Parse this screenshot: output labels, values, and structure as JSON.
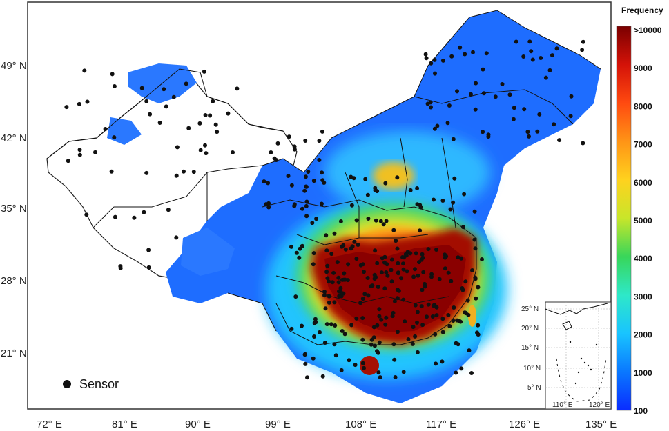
{
  "map": {
    "colorbar": {
      "title": "Frequency",
      "ticks": [
        ">10000",
        "9000",
        "8000",
        "7000",
        "6000",
        "5000",
        "4000",
        "3000",
        "2000",
        "1000",
        "100"
      ],
      "colors": [
        "#0a2cff",
        "#0a78ff",
        "#19c4ff",
        "#2ee8c8",
        "#38d65a",
        "#c8e62a",
        "#ffd21e",
        "#ff9416",
        "#ff4a10",
        "#d41208",
        "#7a0000"
      ]
    },
    "lon_labels": [
      "72° E",
      "81° E",
      "90° E",
      "99° E",
      "108° E",
      "117° E",
      "126° E",
      "135° E"
    ],
    "lat_labels": [
      "49° N",
      "42° N",
      "35° N",
      "28° N",
      "21° N"
    ],
    "legend": {
      "label": "Sensor"
    },
    "inset": {
      "lat_labels": [
        "25° N",
        "20° N",
        "15° N",
        "10° N",
        "5° N"
      ],
      "lon_labels": [
        "110° E",
        "120° E"
      ]
    }
  }
}
